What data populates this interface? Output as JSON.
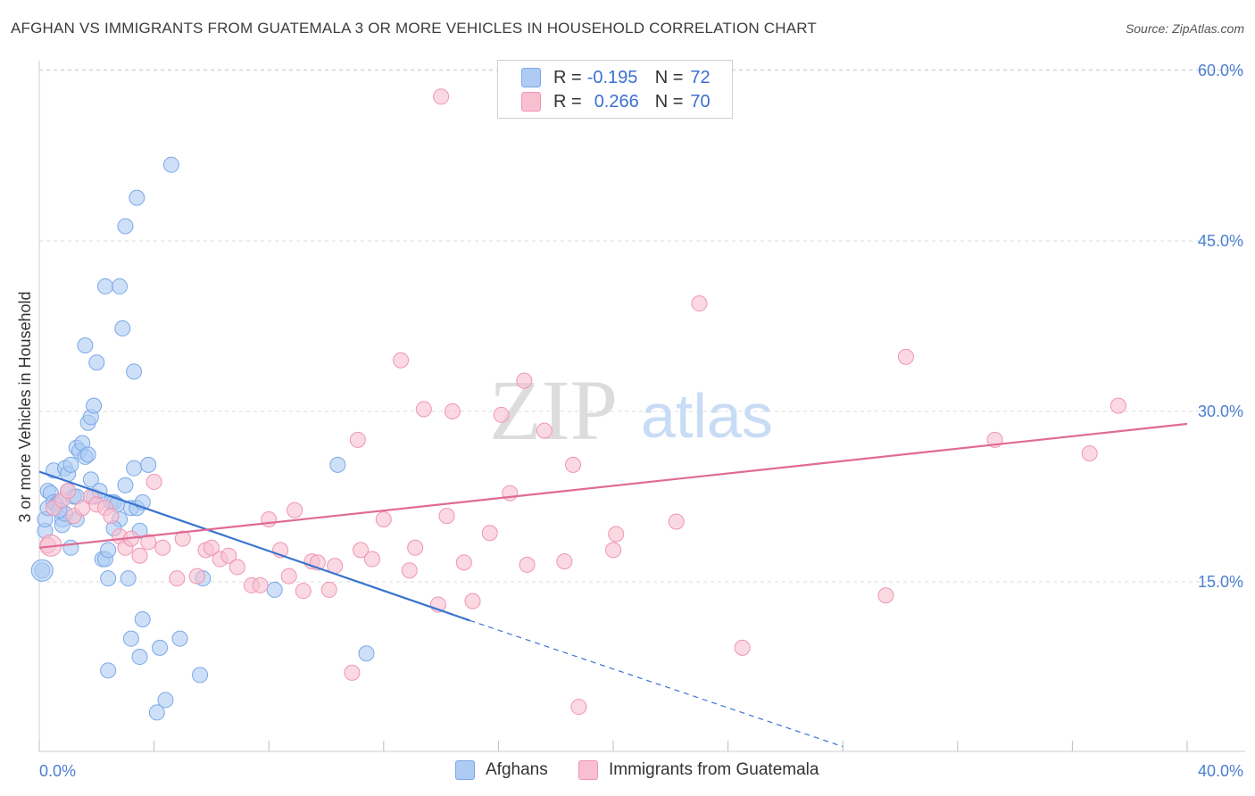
{
  "title": "AFGHAN VS IMMIGRANTS FROM GUATEMALA 3 OR MORE VEHICLES IN HOUSEHOLD CORRELATION CHART",
  "source": "Source: ZipAtlas.com",
  "watermark": {
    "zip": "ZIP",
    "atlas": "atlas"
  },
  "legend": {
    "rows": [
      {
        "r_label": "R =",
        "r_value": "-0.195",
        "n_label": "N =",
        "n_value": "72",
        "color": "#aecbf3"
      },
      {
        "r_label": "R =",
        "r_value": "0.266",
        "n_label": "N =",
        "n_value": "70",
        "color": "#f8bfd0"
      }
    ]
  },
  "bottom_legend": {
    "afghans": "Afghans",
    "guatemala": "Immigrants from Guatemala"
  },
  "colors": {
    "blue_fill": "#aecbf3",
    "blue_stroke": "#7aa8e8",
    "blue_line": "#3a74d0",
    "pink_fill": "#f8bfd0",
    "pink_stroke": "#ef95b2",
    "pink_line": "#e06a93"
  },
  "chart_data": {
    "type": "scatter",
    "title": "AFGHAN VS IMMIGRANTS FROM GUATEMALA 3 OR MORE VEHICLES IN HOUSEHOLD CORRELATION CHART",
    "xlabel": "",
    "ylabel": "3 or more Vehicles in Household",
    "xlim": [
      0,
      40
    ],
    "ylim": [
      0,
      62
    ],
    "x_tick_labels": [
      "0.0%",
      "40.0%"
    ],
    "y_ticks": [
      15,
      30,
      45,
      60
    ],
    "y_tick_labels": [
      "15.0%",
      "30.0%",
      "45.0%",
      "60.0%"
    ],
    "grid": true,
    "series": [
      {
        "name": "Afghans",
        "color": "#aecbf3",
        "points": [
          [
            0.1,
            16.0
          ],
          [
            0.2,
            19.5
          ],
          [
            0.2,
            20.5
          ],
          [
            0.3,
            21.5
          ],
          [
            0.3,
            23.0
          ],
          [
            0.4,
            22.8
          ],
          [
            0.5,
            24.8
          ],
          [
            0.5,
            22.0
          ],
          [
            0.6,
            21.8
          ],
          [
            0.7,
            22.0
          ],
          [
            0.8,
            20.5
          ],
          [
            0.8,
            20.0
          ],
          [
            0.9,
            25.0
          ],
          [
            1.0,
            24.5
          ],
          [
            1.1,
            25.3
          ],
          [
            1.2,
            22.5
          ],
          [
            1.3,
            26.8
          ],
          [
            1.4,
            26.5
          ],
          [
            1.5,
            27.2
          ],
          [
            1.6,
            26.0
          ],
          [
            1.7,
            26.2
          ],
          [
            1.8,
            24.0
          ],
          [
            1.9,
            22.5
          ],
          [
            2.1,
            23.0
          ],
          [
            2.2,
            17.0
          ],
          [
            2.3,
            17.0
          ],
          [
            2.4,
            17.8
          ],
          [
            2.5,
            22.0
          ],
          [
            2.6,
            22.0
          ],
          [
            2.8,
            20.5
          ],
          [
            3.0,
            23.5
          ],
          [
            3.2,
            21.5
          ],
          [
            3.3,
            25.0
          ],
          [
            3.4,
            21.5
          ],
          [
            3.5,
            19.5
          ],
          [
            3.8,
            25.3
          ],
          [
            1.7,
            29.0
          ],
          [
            1.8,
            29.5
          ],
          [
            1.9,
            30.5
          ],
          [
            2.0,
            34.3
          ],
          [
            1.6,
            35.8
          ],
          [
            2.3,
            41.0
          ],
          [
            2.8,
            41.0
          ],
          [
            2.9,
            37.3
          ],
          [
            3.3,
            33.5
          ],
          [
            3.0,
            46.3
          ],
          [
            3.4,
            48.8
          ],
          [
            4.6,
            51.7
          ],
          [
            2.4,
            15.3
          ],
          [
            3.1,
            15.3
          ],
          [
            3.6,
            11.7
          ],
          [
            3.2,
            10.0
          ],
          [
            3.5,
            8.4
          ],
          [
            4.2,
            9.2
          ],
          [
            4.9,
            10.0
          ],
          [
            2.4,
            7.2
          ],
          [
            4.4,
            4.6
          ],
          [
            4.1,
            3.5
          ],
          [
            5.6,
            6.8
          ],
          [
            5.7,
            15.3
          ],
          [
            8.2,
            14.3
          ],
          [
            10.4,
            25.3
          ],
          [
            11.4,
            8.7
          ],
          [
            1.3,
            20.5
          ],
          [
            0.9,
            21.0
          ],
          [
            1.0,
            23.0
          ],
          [
            2.7,
            21.8
          ],
          [
            3.6,
            22.0
          ],
          [
            1.1,
            18.0
          ],
          [
            2.6,
            19.7
          ],
          [
            1.3,
            22.5
          ],
          [
            0.7,
            21.3
          ]
        ]
      },
      {
        "name": "Immigrants from Guatemala",
        "color": "#f8bfd0",
        "points": [
          [
            0.3,
            18.2
          ],
          [
            0.5,
            21.5
          ],
          [
            0.8,
            22.2
          ],
          [
            1.0,
            23.0
          ],
          [
            1.2,
            20.8
          ],
          [
            1.5,
            21.5
          ],
          [
            1.8,
            22.5
          ],
          [
            2.0,
            21.8
          ],
          [
            2.3,
            21.5
          ],
          [
            2.5,
            20.8
          ],
          [
            2.8,
            19.0
          ],
          [
            3.0,
            18.0
          ],
          [
            3.2,
            18.8
          ],
          [
            3.5,
            17.3
          ],
          [
            3.8,
            18.5
          ],
          [
            4.0,
            23.8
          ],
          [
            4.3,
            18.0
          ],
          [
            4.8,
            15.3
          ],
          [
            5.0,
            18.8
          ],
          [
            5.5,
            15.5
          ],
          [
            5.8,
            17.8
          ],
          [
            6.0,
            18.0
          ],
          [
            6.3,
            17.0
          ],
          [
            6.6,
            17.3
          ],
          [
            6.9,
            16.3
          ],
          [
            7.4,
            14.7
          ],
          [
            7.7,
            14.7
          ],
          [
            8.0,
            20.5
          ],
          [
            8.4,
            17.8
          ],
          [
            8.7,
            15.5
          ],
          [
            8.9,
            21.3
          ],
          [
            9.2,
            14.2
          ],
          [
            9.5,
            16.8
          ],
          [
            9.7,
            16.7
          ],
          [
            10.1,
            14.3
          ],
          [
            10.3,
            16.4
          ],
          [
            10.9,
            7.0
          ],
          [
            11.1,
            27.5
          ],
          [
            11.2,
            17.8
          ],
          [
            11.6,
            17.0
          ],
          [
            12.0,
            20.5
          ],
          [
            12.6,
            34.5
          ],
          [
            12.9,
            16.0
          ],
          [
            13.1,
            18.0
          ],
          [
            13.4,
            30.2
          ],
          [
            13.9,
            13.0
          ],
          [
            14.2,
            20.8
          ],
          [
            14.4,
            30.0
          ],
          [
            14.8,
            16.7
          ],
          [
            15.1,
            13.3
          ],
          [
            15.7,
            19.3
          ],
          [
            16.1,
            29.7
          ],
          [
            16.4,
            22.8
          ],
          [
            17.0,
            16.5
          ],
          [
            17.6,
            28.3
          ],
          [
            18.3,
            16.8
          ],
          [
            18.6,
            25.3
          ],
          [
            18.8,
            4.0
          ],
          [
            20.0,
            17.8
          ],
          [
            20.1,
            19.2
          ],
          [
            22.2,
            20.3
          ],
          [
            23.0,
            39.5
          ],
          [
            24.5,
            9.2
          ],
          [
            29.5,
            13.8
          ],
          [
            30.2,
            34.8
          ],
          [
            33.3,
            27.5
          ],
          [
            36.6,
            26.3
          ],
          [
            37.6,
            30.5
          ],
          [
            14.0,
            57.7
          ],
          [
            16.9,
            32.7
          ]
        ]
      }
    ],
    "trendlines": [
      {
        "series": "Afghans",
        "x": [
          0,
          15
        ],
        "y": [
          24.7,
          11.6
        ],
        "dashed_extension_to": [
          28,
          0.5
        ]
      },
      {
        "series": "Immigrants from Guatemala",
        "x": [
          0,
          40
        ],
        "y": [
          18.0,
          28.9
        ]
      }
    ]
  }
}
